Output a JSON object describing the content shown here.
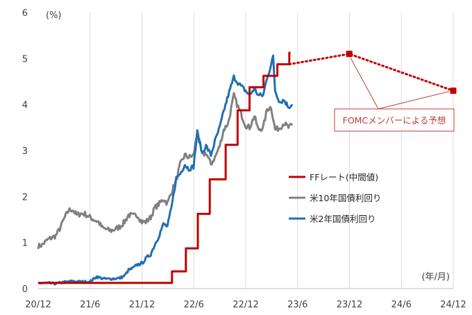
{
  "chart_data": {
    "type": "line",
    "y_unit_label": "(%)",
    "x_unit_label": "(年/月)",
    "ylim": [
      0,
      6
    ],
    "yticks": [
      0,
      1,
      2,
      3,
      4,
      5,
      6
    ],
    "xlim": [
      "2020-12",
      "2024-12"
    ],
    "xticks": [
      "20/12",
      "21/6",
      "21/12",
      "22/6",
      "22/12",
      "23/6",
      "23/12",
      "24/6",
      "24/12"
    ],
    "grid": "vertical",
    "legend_position": "right",
    "colors": {
      "ff": "#c00000",
      "us10y": "#808080",
      "us2y": "#1f6fb5",
      "annotation": "#c0392b"
    },
    "series": [
      {
        "name": "FFレート(中間値)",
        "key": "ff",
        "style": "step",
        "x": [
          "2020-12-01",
          "2022-03-17",
          "2022-05-05",
          "2022-06-16",
          "2022-07-28",
          "2022-09-22",
          "2022-11-03",
          "2022-12-15",
          "2023-02-02",
          "2023-03-23",
          "2023-05-04"
        ],
        "values": [
          0.125,
          0.375,
          0.875,
          1.625,
          2.375,
          3.125,
          3.875,
          4.375,
          4.625,
          4.875,
          5.125
        ]
      },
      {
        "name": "米10年国債利回り",
        "key": "us10y",
        "style": "line",
        "x": [
          "2020-12-01",
          "2020-12-15",
          "2021-01-01",
          "2021-01-15",
          "2021-02-01",
          "2021-02-15",
          "2021-03-01",
          "2021-03-18",
          "2021-04-01",
          "2021-04-15",
          "2021-05-01",
          "2021-05-15",
          "2021-06-01",
          "2021-06-15",
          "2021-07-01",
          "2021-07-15",
          "2021-08-01",
          "2021-08-15",
          "2021-09-01",
          "2021-09-15",
          "2021-10-01",
          "2021-10-15",
          "2021-11-01",
          "2021-11-15",
          "2021-12-01",
          "2021-12-15",
          "2022-01-01",
          "2022-01-15",
          "2022-02-01",
          "2022-02-15",
          "2022-03-01",
          "2022-03-15",
          "2022-04-01",
          "2022-04-15",
          "2022-05-01",
          "2022-05-15",
          "2022-06-01",
          "2022-06-14",
          "2022-07-01",
          "2022-07-15",
          "2022-08-01",
          "2022-08-15",
          "2022-09-01",
          "2022-09-15",
          "2022-10-01",
          "2022-10-21",
          "2022-11-01",
          "2022-11-15",
          "2022-12-01",
          "2022-12-15",
          "2023-01-01",
          "2023-01-15",
          "2023-02-01",
          "2023-02-15",
          "2023-03-01",
          "2023-03-15",
          "2023-04-01",
          "2023-04-15",
          "2023-05-01",
          "2023-05-15"
        ],
        "values": [
          0.92,
          0.95,
          1.05,
          1.1,
          1.15,
          1.3,
          1.5,
          1.7,
          1.72,
          1.6,
          1.63,
          1.62,
          1.55,
          1.5,
          1.45,
          1.32,
          1.28,
          1.26,
          1.3,
          1.35,
          1.45,
          1.6,
          1.58,
          1.6,
          1.45,
          1.45,
          1.55,
          1.75,
          1.85,
          1.95,
          1.85,
          2.1,
          2.35,
          2.7,
          2.9,
          2.85,
          2.9,
          3.4,
          2.9,
          2.95,
          2.7,
          2.85,
          3.1,
          3.45,
          3.6,
          4.2,
          4.0,
          3.8,
          3.55,
          3.5,
          3.75,
          3.45,
          3.5,
          3.9,
          3.95,
          3.45,
          3.5,
          3.6,
          3.5,
          3.55
        ]
      },
      {
        "name": "米2年国債利回り",
        "key": "us2y",
        "style": "line",
        "x": [
          "2020-12-01",
          "2021-01-01",
          "2021-02-01",
          "2021-03-01",
          "2021-04-01",
          "2021-05-01",
          "2021-06-01",
          "2021-06-25",
          "2021-07-15",
          "2021-08-01",
          "2021-09-01",
          "2021-09-15",
          "2021-10-01",
          "2021-10-15",
          "2021-11-01",
          "2021-11-15",
          "2021-12-01",
          "2021-12-15",
          "2022-01-01",
          "2022-01-15",
          "2022-02-01",
          "2022-02-15",
          "2022-03-01",
          "2022-03-15",
          "2022-04-01",
          "2022-04-15",
          "2022-05-01",
          "2022-05-15",
          "2022-06-01",
          "2022-06-14",
          "2022-07-01",
          "2022-07-15",
          "2022-08-01",
          "2022-08-15",
          "2022-09-01",
          "2022-09-15",
          "2022-10-01",
          "2022-10-21",
          "2022-11-01",
          "2022-11-15",
          "2022-12-01",
          "2022-12-15",
          "2023-01-01",
          "2023-01-15",
          "2023-02-01",
          "2023-02-15",
          "2023-03-01",
          "2023-03-08",
          "2023-03-15",
          "2023-04-01",
          "2023-04-15",
          "2023-05-01",
          "2023-05-15"
        ],
        "values": [
          0.12,
          0.12,
          0.11,
          0.14,
          0.16,
          0.15,
          0.15,
          0.26,
          0.22,
          0.21,
          0.22,
          0.23,
          0.28,
          0.4,
          0.45,
          0.52,
          0.55,
          0.65,
          0.75,
          0.95,
          1.18,
          1.4,
          1.35,
          1.75,
          2.4,
          2.5,
          2.7,
          2.6,
          2.65,
          3.4,
          2.95,
          3.1,
          2.9,
          3.2,
          3.5,
          3.85,
          4.2,
          4.6,
          4.5,
          4.4,
          4.3,
          4.2,
          4.35,
          4.2,
          4.2,
          4.6,
          4.85,
          5.05,
          4.3,
          4.05,
          4.1,
          3.95,
          4.0
        ]
      }
    ],
    "projection": {
      "label": "FOMCメンバーによる予想",
      "x": [
        "2023-05-04",
        "2023-12-01",
        "2024-12-01"
      ],
      "values": [
        4.875,
        5.1,
        4.3
      ]
    }
  }
}
